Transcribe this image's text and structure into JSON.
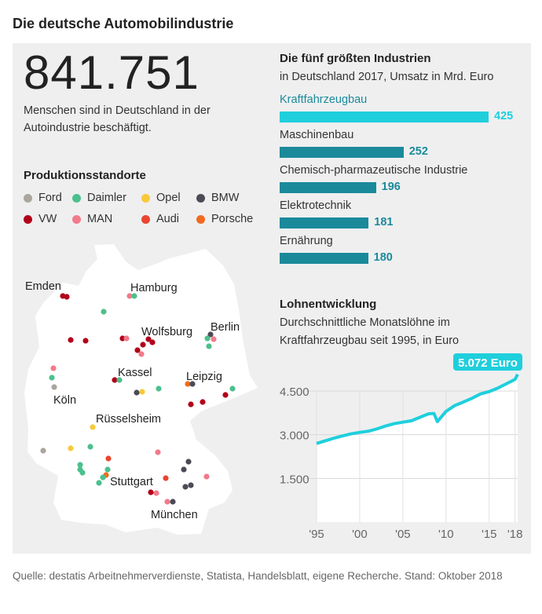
{
  "title": "Die deutsche Automobilindustrie",
  "headline": {
    "number": "841.751",
    "text": "Menschen sind in Deutschland in der Autoindustrie beschäftigt."
  },
  "map": {
    "title": "Produktionsstandorte",
    "legend": [
      {
        "brand": "Ford",
        "color": "#aaa69d"
      },
      {
        "brand": "Daimler",
        "color": "#4cc08c"
      },
      {
        "brand": "Opel",
        "color": "#f8c93a"
      },
      {
        "brand": "BMW",
        "color": "#4b4b57"
      },
      {
        "brand": "VW",
        "color": "#b20019"
      },
      {
        "brand": "MAN",
        "color": "#f27a8a"
      },
      {
        "brand": "Audi",
        "color": "#ea4530"
      },
      {
        "brand": "Porsche",
        "color": "#f26a1f"
      }
    ],
    "cities": [
      "Emden",
      "Hamburg",
      "Wolfsburg",
      "Berlin",
      "Kassel",
      "Leipzig",
      "Köln",
      "Rüsselsheim",
      "Stuttgart",
      "München"
    ]
  },
  "chart_data": [
    {
      "type": "bar",
      "title": "Die fünf größten Industrien",
      "subtitle": "in Deutschland 2017, Umsatz in Mrd. Euro",
      "categories": [
        "Kraftfahrzeugbau",
        "Maschinenbau",
        "Chemisch-pharmazeutische Industrie",
        "Elektrotechnik",
        "Ernährung"
      ],
      "values": [
        425,
        252,
        196,
        181,
        180
      ],
      "colors": {
        "highlight": "#1fcfdc",
        "default": "#1a8a9b"
      }
    },
    {
      "type": "area",
      "title": "Lohnentwicklung",
      "subtitle": "Durchschnittliche Monatslöhne im Kraftfahrzeugbau seit 1995, in Euro",
      "x": [
        1995,
        1996,
        1997,
        1998,
        1999,
        2000,
        2001,
        2002,
        2003,
        2004,
        2005,
        2006,
        2007,
        2008,
        2008.6,
        2009,
        2010,
        2011,
        2012,
        2013,
        2014,
        2015,
        2016,
        2017,
        2018,
        2018.3
      ],
      "y": [
        2700,
        2790,
        2880,
        2960,
        3030,
        3080,
        3120,
        3200,
        3300,
        3380,
        3430,
        3480,
        3600,
        3720,
        3730,
        3450,
        3800,
        4000,
        4120,
        4250,
        4400,
        4480,
        4600,
        4750,
        4900,
        5072
      ],
      "ylim": [
        0,
        5400
      ],
      "yticks": [
        1500,
        3000,
        4500
      ],
      "ytick_labels": [
        "1.500",
        "3.000",
        "4.500"
      ],
      "xticks": [
        1995,
        2000,
        2005,
        2010,
        2015,
        2018
      ],
      "xtick_labels": [
        "'95",
        "'00",
        "'05",
        "'10",
        "'15",
        "'18"
      ],
      "annotation": "5.072 Euro",
      "color": "#1fcfdc",
      "grid": true
    }
  ],
  "source": "Quelle: destatis Arbeitnehmerverdienste, Statista, Handelsblatt, eigene Recherche. Stand: Oktober 2018"
}
